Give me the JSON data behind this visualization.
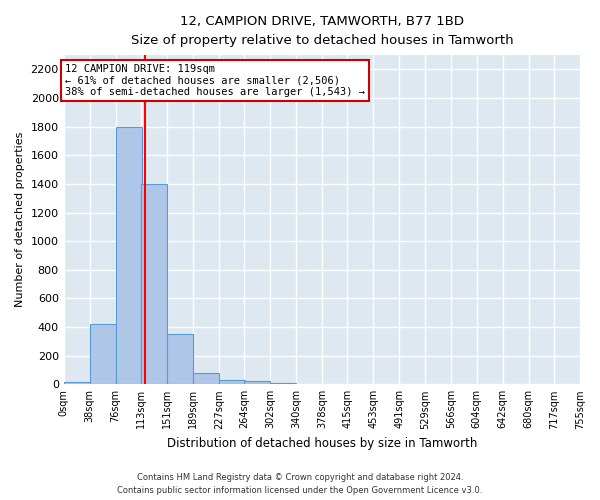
{
  "title": "12, CAMPION DRIVE, TAMWORTH, B77 1BD",
  "subtitle": "Size of property relative to detached houses in Tamworth",
  "xlabel": "Distribution of detached houses by size in Tamworth",
  "ylabel": "Number of detached properties",
  "bar_color": "#aec6e8",
  "bar_edge_color": "#5b9bd5",
  "background_color": "#dde8f0",
  "grid_color": "#ffffff",
  "red_line_x": 119,
  "bin_edges": [
    0,
    38,
    76,
    113,
    151,
    189,
    227,
    264,
    302,
    340,
    378,
    415,
    453,
    491,
    529,
    566,
    604,
    642,
    680,
    717,
    755
  ],
  "bar_heights": [
    15,
    420,
    1800,
    1400,
    350,
    80,
    30,
    20,
    10,
    0,
    0,
    0,
    0,
    0,
    0,
    0,
    0,
    0,
    0,
    0
  ],
  "ylim": [
    0,
    2300
  ],
  "yticks": [
    0,
    200,
    400,
    600,
    800,
    1000,
    1200,
    1400,
    1600,
    1800,
    2000,
    2200
  ],
  "annotation_title": "12 CAMPION DRIVE: 119sqm",
  "annotation_line1": "← 61% of detached houses are smaller (2,506)",
  "annotation_line2": "38% of semi-detached houses are larger (1,543) →",
  "annotation_box_color": "#ffffff",
  "annotation_border_color": "#cc0000",
  "footnote1": "Contains HM Land Registry data © Crown copyright and database right 2024.",
  "footnote2": "Contains public sector information licensed under the Open Government Licence v3.0."
}
